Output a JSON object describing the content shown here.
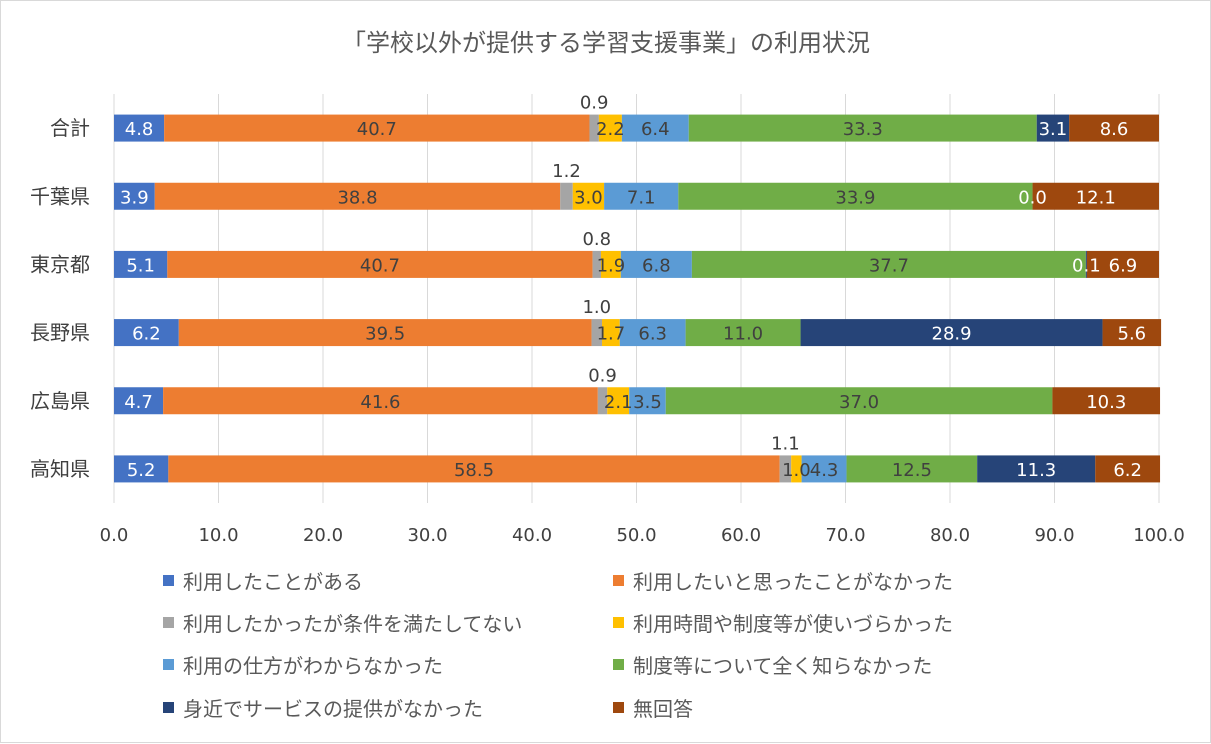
{
  "chart_data": {
    "type": "bar",
    "orientation": "horizontal",
    "stacked": true,
    "title": "「学校以外が提供する学習支援事業」の利用状況",
    "categories": [
      "合計",
      "千葉県",
      "東京都",
      "長野県",
      "広島県",
      "高知県"
    ],
    "xlim": [
      0,
      100
    ],
    "x_ticks": [
      "0.0",
      "10.0",
      "20.0",
      "30.0",
      "40.0",
      "50.0",
      "60.0",
      "70.0",
      "80.0",
      "90.0",
      "100.0"
    ],
    "grid": true,
    "legend_position": "bottom",
    "series": [
      {
        "name": "利用したことがある",
        "color": "#4472c4",
        "label_color": "#ffffff",
        "values": [
          4.8,
          3.9,
          5.1,
          6.2,
          4.7,
          5.2
        ],
        "labels": [
          "4.8",
          "3.9",
          "5.1",
          "6.2",
          "4.7",
          "5.2"
        ]
      },
      {
        "name": "利用したいと思ったことがなかった",
        "color": "#ed7d31",
        "label_color": "#404040",
        "values": [
          40.7,
          38.8,
          40.7,
          39.5,
          41.6,
          58.5
        ],
        "labels": [
          "40.7",
          "38.8",
          "40.7",
          "39.5",
          "41.6",
          "58.5"
        ]
      },
      {
        "name": "利用したかったが条件を満たしてない",
        "color": "#a5a5a5",
        "label_color": "#404040",
        "values": [
          0.9,
          1.2,
          0.8,
          1.0,
          0.9,
          1.1
        ],
        "labels": [
          "0.9",
          "1.2",
          "0.8",
          "1.0",
          "0.9",
          "1.1"
        ],
        "label_above": true
      },
      {
        "name": "利用時間や制度等が使いづらかった",
        "color": "#ffc000",
        "label_color": "#404040",
        "values": [
          2.2,
          3.0,
          1.9,
          1.7,
          2.1,
          1.0
        ],
        "labels": [
          "2.2",
          "3.0",
          "1.9",
          "1.7",
          "2.1",
          "1.0"
        ]
      },
      {
        "name": "利用の仕方がわからなかった",
        "color": "#5b9bd5",
        "label_color": "#404040",
        "values": [
          6.4,
          7.1,
          6.8,
          6.3,
          3.5,
          4.3
        ],
        "labels": [
          "6.4",
          "7.1",
          "6.8",
          "6.3",
          "3.5",
          "4.3"
        ]
      },
      {
        "name": "制度等について全く知らなかった",
        "color": "#70ad47",
        "label_color": "#404040",
        "values": [
          33.3,
          33.9,
          37.7,
          11.0,
          37.0,
          12.5
        ],
        "labels": [
          "33.3",
          "33.9",
          "37.7",
          "11.0",
          "37.0",
          "12.5"
        ]
      },
      {
        "name": "身近でサービスの提供がなかった",
        "color": "#264478",
        "label_color": "#ffffff",
        "values": [
          3.1,
          0.0,
          0.1,
          28.9,
          0.0,
          11.3
        ],
        "labels": [
          "3.1",
          "0.0",
          "0.1",
          "28.9",
          "",
          "11.3"
        ]
      },
      {
        "name": "無回答",
        "color": "#9e480e",
        "label_color": "#ffffff",
        "values": [
          8.6,
          12.1,
          6.9,
          5.6,
          10.3,
          6.2
        ],
        "labels": [
          "8.6",
          "12.1",
          "6.9",
          "5.6",
          "10.3",
          "6.2"
        ]
      }
    ]
  }
}
